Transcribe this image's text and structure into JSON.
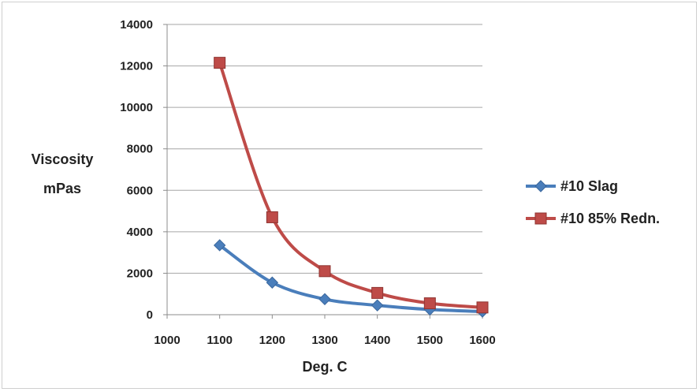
{
  "chart_data": {
    "type": "line",
    "title": "",
    "xlabel": "Deg. C",
    "ylabel_line1": "Viscosity",
    "ylabel_line2": "mPas",
    "xlim": [
      1000,
      1600
    ],
    "ylim": [
      0,
      14000
    ],
    "x_ticks": [
      "1000",
      "1100",
      "1200",
      "1300",
      "1400",
      "1500",
      "1600"
    ],
    "y_ticks": [
      "0",
      "2000",
      "4000",
      "6000",
      "8000",
      "10000",
      "12000",
      "14000"
    ],
    "grid": "horizontal",
    "legend_position": "right",
    "series": [
      {
        "name": "#10 Slag",
        "color": "#4a7ebb",
        "marker": "diamond",
        "x": [
          1100,
          1200,
          1300,
          1400,
          1500,
          1600
        ],
        "y": [
          3350,
          1550,
          750,
          450,
          250,
          150
        ]
      },
      {
        "name": "#10 85% Redn.",
        "color": "#be4b48",
        "marker": "square",
        "x": [
          1100,
          1200,
          1300,
          1400,
          1500,
          1600
        ],
        "y": [
          12150,
          4700,
          2100,
          1050,
          550,
          350
        ]
      }
    ]
  }
}
